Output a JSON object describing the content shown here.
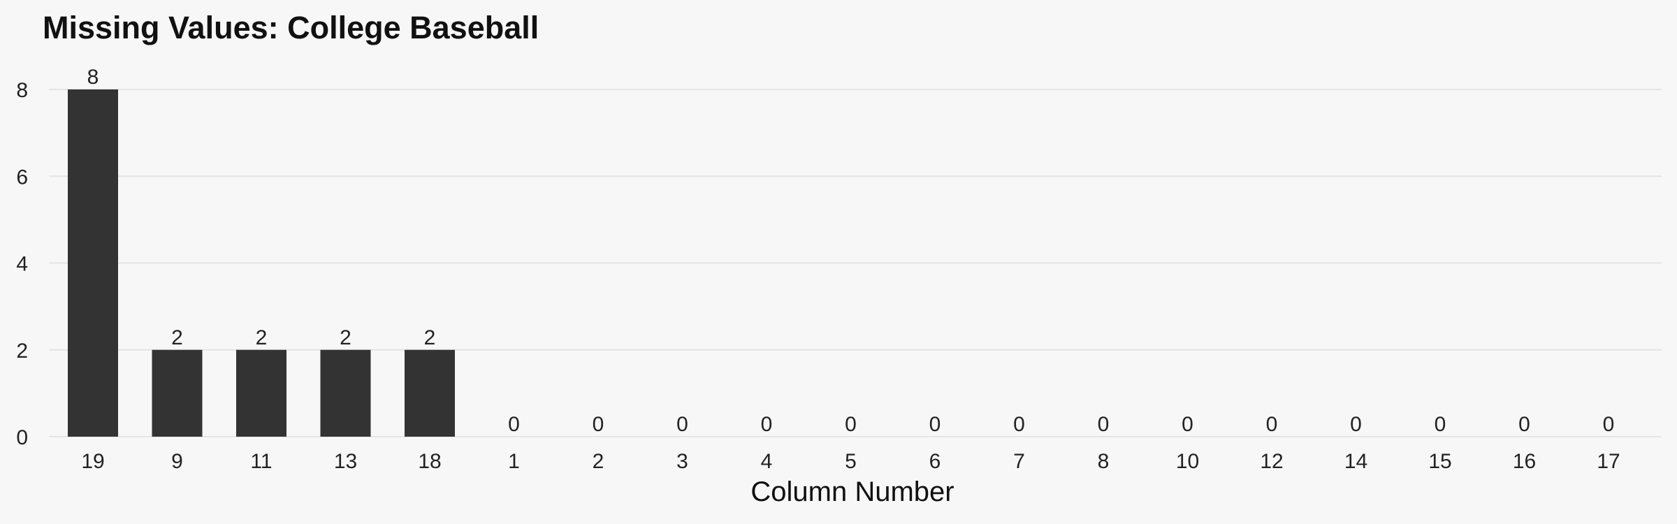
{
  "colors": {
    "background": "#f7f7f7",
    "bar": "#333333",
    "grid": "#e4e4e4",
    "text": "#222222"
  },
  "chart_data": {
    "type": "bar",
    "title": "Missing Values: College Baseball",
    "xlabel": "Column Number",
    "ylabel": "",
    "categories": [
      "19",
      "9",
      "11",
      "13",
      "18",
      "1",
      "2",
      "3",
      "4",
      "5",
      "6",
      "7",
      "8",
      "10",
      "12",
      "14",
      "15",
      "16",
      "17"
    ],
    "values": [
      8,
      2,
      2,
      2,
      2,
      0,
      0,
      0,
      0,
      0,
      0,
      0,
      0,
      0,
      0,
      0,
      0,
      0,
      0
    ],
    "ylim": [
      0,
      8
    ],
    "yticks": [
      0,
      2,
      4,
      6,
      8
    ],
    "grid": "horizontal",
    "legend": "none",
    "data_labels": true
  }
}
